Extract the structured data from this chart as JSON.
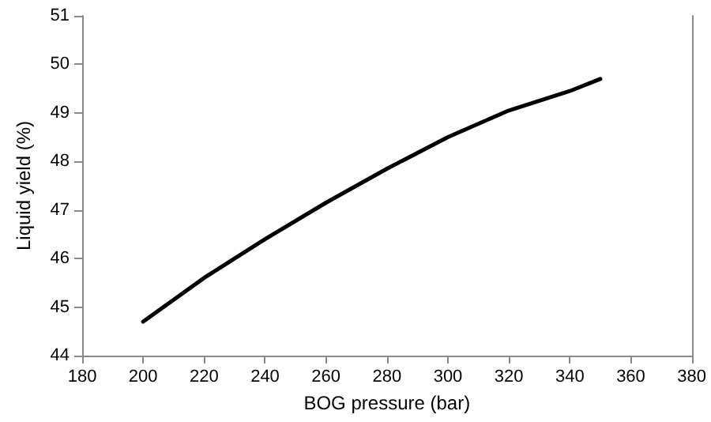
{
  "chart_data": {
    "type": "line",
    "xlabel": "BOG pressure (bar)",
    "ylabel": "Liquid yield (%)",
    "x": [
      200,
      220,
      240,
      260,
      280,
      300,
      320,
      340,
      350
    ],
    "series": [
      {
        "color": "#000000",
        "values": [
          44.7,
          45.6,
          46.4,
          47.15,
          47.85,
          48.5,
          49.05,
          49.45,
          49.7
        ]
      }
    ],
    "xlim": [
      180,
      380
    ],
    "xticks": [
      180,
      200,
      220,
      240,
      260,
      280,
      300,
      320,
      340,
      360,
      380
    ],
    "ylim": [
      44,
      51
    ],
    "yticks": [
      44,
      45,
      46,
      47,
      48,
      49,
      50,
      51
    ],
    "grid": false,
    "marker": "none",
    "line_style": "solid"
  }
}
